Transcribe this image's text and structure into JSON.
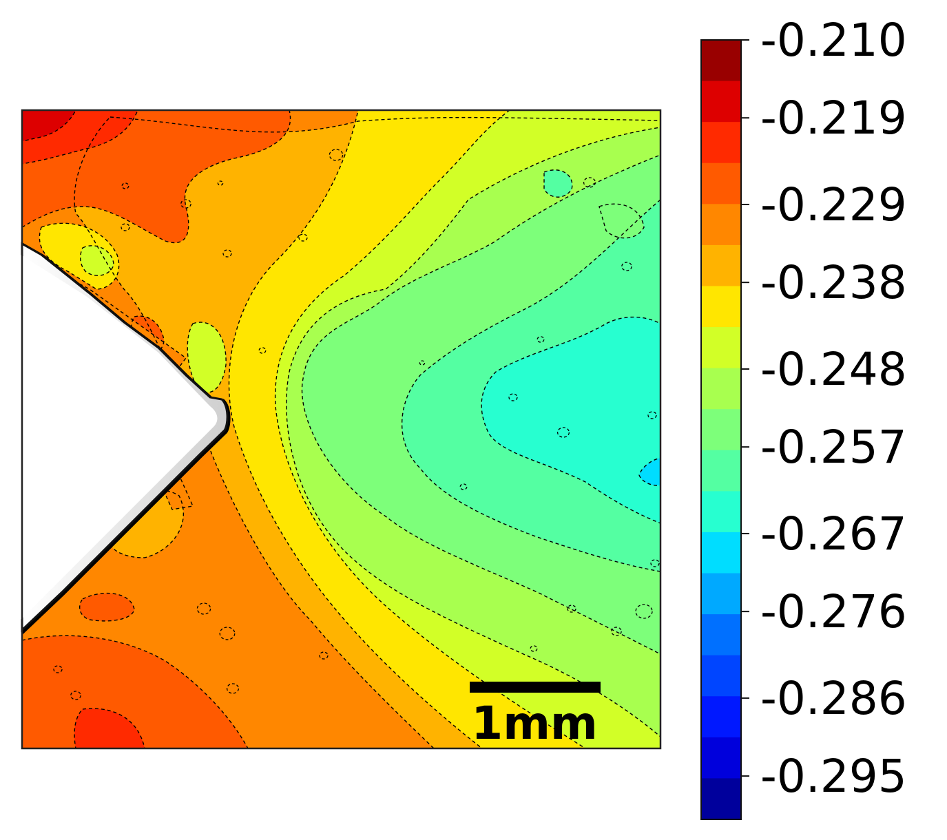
{
  "chart_data": {
    "type": "heatmap",
    "title": "",
    "xlabel": "",
    "ylabel": "",
    "scale_bar": {
      "label": "1mm"
    },
    "colorbar": {
      "min": -0.3,
      "max": -0.21,
      "tick_labels": [
        "-0.210",
        "-0.219",
        "-0.229",
        "-0.238",
        "-0.248",
        "-0.257",
        "-0.267",
        "-0.276",
        "-0.286",
        "-0.295"
      ],
      "bands_top_to_bottom": [
        "#990000",
        "#dd0000",
        "#ff2a00",
        "#ff5a00",
        "#ff8700",
        "#ffb300",
        "#ffe600",
        "#d2ff27",
        "#a8ff4f",
        "#7dff7a",
        "#54ffa2",
        "#27ffd0",
        "#00ddff",
        "#00a9ff",
        "#0070ff",
        "#0045ff",
        "#0018ff",
        "#0000dc",
        "#00009c"
      ]
    },
    "field_levels": [
      {
        "name": "top-left-hot",
        "value": -0.216,
        "color": "#dd0000"
      },
      {
        "name": "upper-red",
        "value": -0.221,
        "color": "#ff2a00"
      },
      {
        "name": "orange-red",
        "value": -0.226,
        "color": "#ff5a00"
      },
      {
        "name": "orange",
        "value": -0.231,
        "color": "#ff8700"
      },
      {
        "name": "amber",
        "value": -0.236,
        "color": "#ffb300"
      },
      {
        "name": "yellow",
        "value": -0.24,
        "color": "#ffe600"
      },
      {
        "name": "yellow-green",
        "value": -0.245,
        "color": "#d2ff27"
      },
      {
        "name": "light-green",
        "value": -0.25,
        "color": "#a8ff4f"
      },
      {
        "name": "green",
        "value": -0.255,
        "color": "#7dff7a"
      },
      {
        "name": "sea-green",
        "value": -0.26,
        "color": "#54ffa2"
      },
      {
        "name": "aqua",
        "value": -0.264,
        "color": "#27ffd0"
      },
      {
        "name": "cyan",
        "value": -0.269,
        "color": "#00ddff"
      }
    ]
  }
}
